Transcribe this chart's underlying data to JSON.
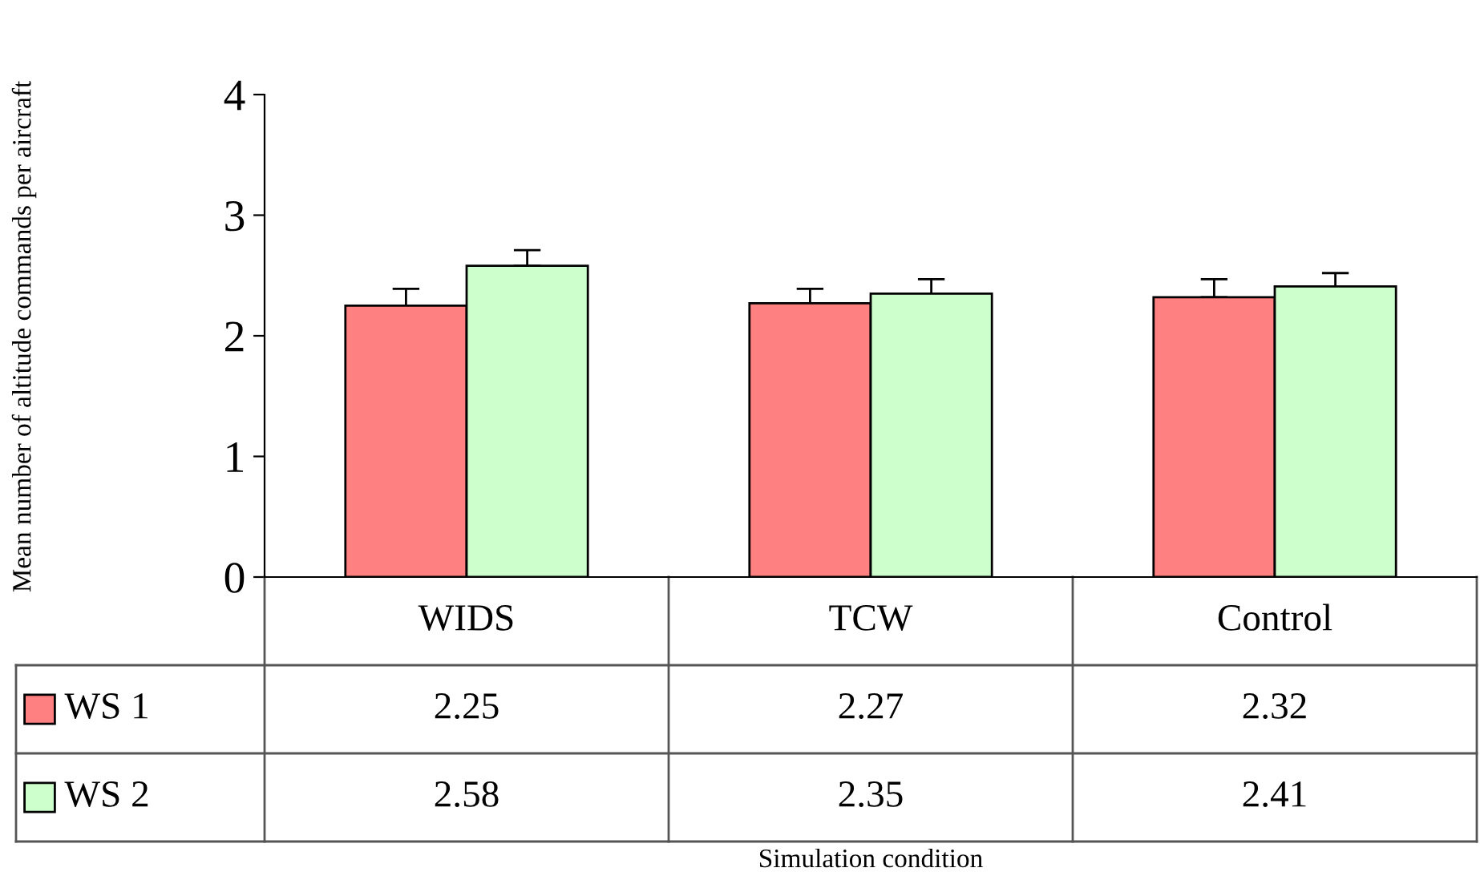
{
  "chart_data": {
    "type": "bar",
    "annotations": [
      "Mean number of altitude commands per aircraft",
      "Simulation condition"
    ],
    "categories": [
      "WIDS",
      "TCW",
      "Control"
    ],
    "series": [
      {
        "name": "WS 1",
        "color": "#ff8080",
        "values": [
          2.25,
          2.27,
          2.32
        ],
        "errors": [
          [
            2.25,
            2.39
          ],
          [
            2.27,
            2.39
          ],
          [
            2.32,
            2.47
          ]
        ]
      },
      {
        "name": "WS 2",
        "color": "#ccffcc",
        "values": [
          2.58,
          2.35,
          2.41
        ],
        "errors": [
          [
            2.58,
            2.71
          ],
          [
            2.35,
            2.47
          ],
          [
            2.41,
            2.52
          ]
        ]
      }
    ],
    "ylim": [
      0,
      4
    ],
    "yticks": [
      0,
      1,
      2,
      3,
      4
    ],
    "grid": false,
    "legend": "bottom left",
    "data_labels": true
  }
}
